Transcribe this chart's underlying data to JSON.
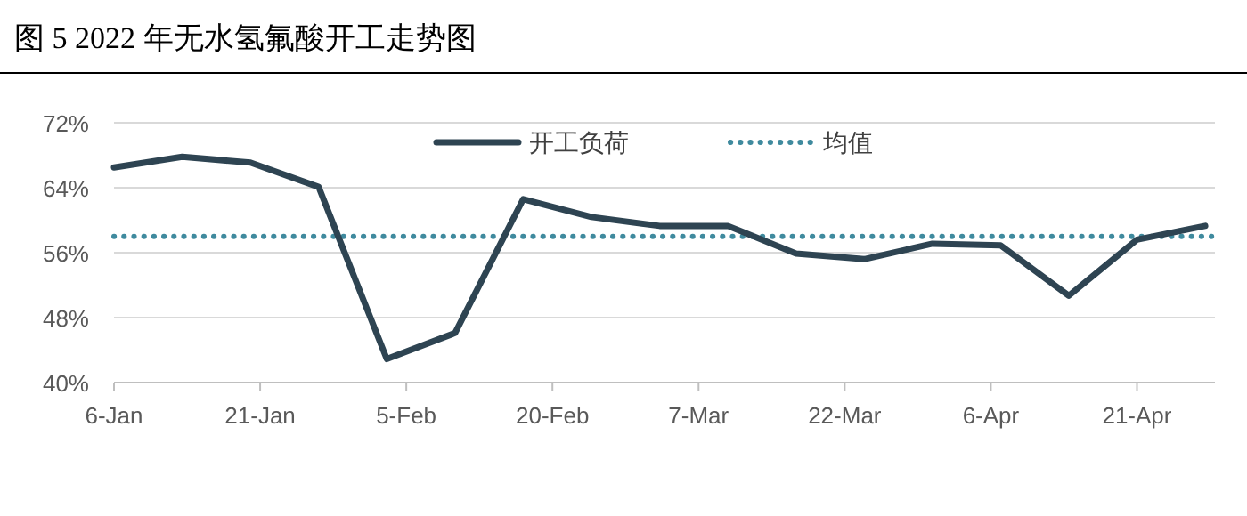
{
  "chart_data": {
    "type": "line",
    "title": "图 5   2022 年无水氢氟酸开工走势图",
    "x": [
      "2022-01-06",
      "2022-01-13",
      "2022-01-20",
      "2022-01-27",
      "2022-02-03",
      "2022-02-10",
      "2022-02-17",
      "2022-02-24",
      "2022-03-03",
      "2022-03-10",
      "2022-03-17",
      "2022-03-24",
      "2022-03-31",
      "2022-04-07",
      "2022-04-14",
      "2022-04-21",
      "2022-04-28"
    ],
    "series": [
      {
        "name": "开工负荷",
        "color": "#2e4452",
        "values": [
          66.5,
          67.8,
          67.1,
          64.1,
          42.9,
          46.1,
          62.6,
          60.4,
          59.3,
          59.3,
          55.9,
          55.2,
          57.1,
          56.9,
          50.7,
          57.6,
          59.3
        ]
      }
    ],
    "ref_lines": [
      {
        "axis": "y",
        "value": 58.0,
        "label": "均值",
        "color": "#3f8a9e",
        "line_style": "dotted"
      }
    ],
    "xlim": [
      "2022-01-06",
      "2022-04-29"
    ],
    "xticks": [
      {
        "value": "2022-01-06",
        "label": "6-Jan"
      },
      {
        "value": "2022-01-21",
        "label": "21-Jan"
      },
      {
        "value": "2022-02-05",
        "label": "5-Feb"
      },
      {
        "value": "2022-02-20",
        "label": "20-Feb"
      },
      {
        "value": "2022-03-07",
        "label": "7-Mar"
      },
      {
        "value": "2022-03-22",
        "label": "22-Mar"
      },
      {
        "value": "2022-04-06",
        "label": "6-Apr"
      },
      {
        "value": "2022-04-21",
        "label": "21-Apr"
      }
    ],
    "ylim": [
      40,
      72
    ],
    "yticks": [
      {
        "value": 40,
        "label": "40%"
      },
      {
        "value": 48,
        "label": "48%"
      },
      {
        "value": 56,
        "label": "56%"
      },
      {
        "value": 64,
        "label": "64%"
      },
      {
        "value": 72,
        "label": "72%"
      }
    ],
    "grid": "y",
    "legend": "top",
    "marker": "none",
    "line_style": "solid"
  }
}
